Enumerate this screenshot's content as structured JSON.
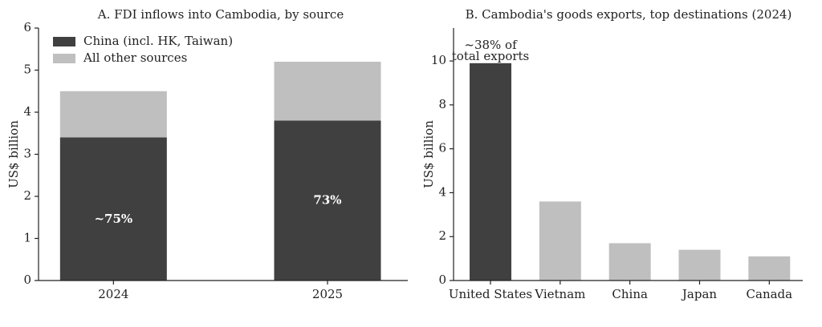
{
  "chart_data": [
    {
      "type": "stacked-bar",
      "title": "A. FDI inflows into Cambodia, by source",
      "ylabel": "US$ billion",
      "categories": [
        "2024",
        "2025"
      ],
      "series": [
        {
          "name": "China (incl. HK, Taiwan)",
          "color": "#404040",
          "values": [
            3.4,
            3.8
          ]
        },
        {
          "name": "All other sources",
          "color": "#bfbfbf",
          "values": [
            1.1,
            1.4
          ]
        }
      ],
      "annotations": [
        "~75%",
        "73%"
      ],
      "ylim": [
        0,
        6
      ],
      "yticks": [
        0,
        1,
        2,
        3,
        4,
        5,
        6
      ],
      "legend": "upper left"
    },
    {
      "type": "bar",
      "title": "B. Cambodia's goods exports, top destinations (2024)",
      "ylabel": "US$ billion",
      "categories": [
        "United States",
        "Vietnam",
        "China",
        "Japan",
        "Canada"
      ],
      "values": [
        9.9,
        3.6,
        1.7,
        1.4,
        1.1
      ],
      "colors": [
        "#404040",
        "#bfbfbf",
        "#bfbfbf",
        "#bfbfbf",
        "#bfbfbf"
      ],
      "annotation": [
        "~38% of",
        "total exports"
      ],
      "ylim": [
        0,
        11.5
      ],
      "yticks": [
        0,
        2,
        4,
        6,
        8,
        10
      ]
    }
  ]
}
